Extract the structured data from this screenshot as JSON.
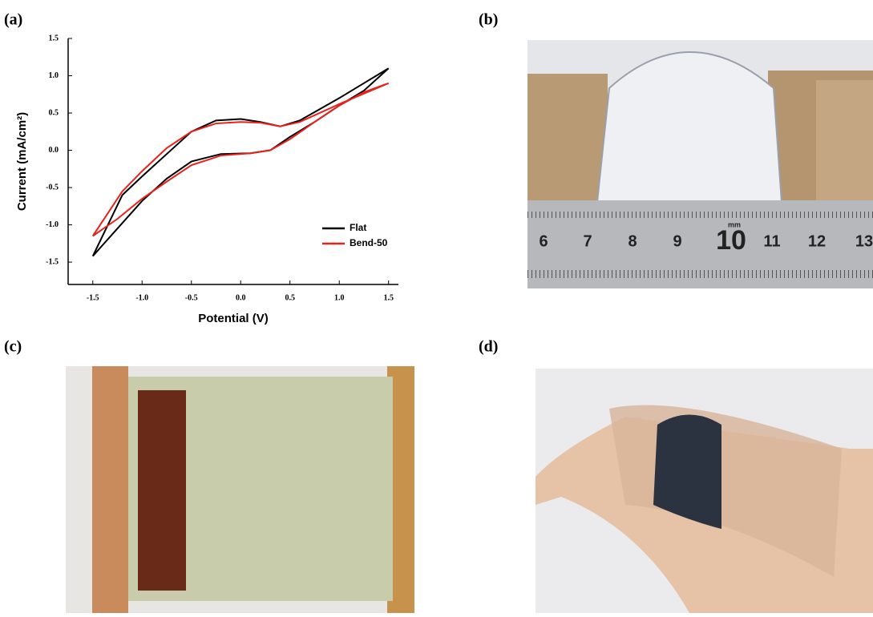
{
  "chart_data": {
    "type": "line",
    "xlabel": "Potential (V)",
    "ylabel": "Current (mA/cm²)",
    "xlim": [
      -1.75,
      1.6
    ],
    "ylim": [
      -1.8,
      1.5
    ],
    "xticks": [
      {
        "value": -1.5,
        "label": "-1.5"
      },
      {
        "value": -1,
        "label": "-1.0"
      },
      {
        "value": -0.5,
        "label": "-0.5"
      },
      {
        "value": 0,
        "label": "0.0"
      },
      {
        "value": 0.5,
        "label": "0.5"
      },
      {
        "value": 1,
        "label": "1.0"
      },
      {
        "value": 1.5,
        "label": "1.5"
      }
    ],
    "yticks": [
      {
        "value": -1.5,
        "label": "-1.5"
      },
      {
        "value": -1,
        "label": "-1.0"
      },
      {
        "value": -0.5,
        "label": "-0.5"
      },
      {
        "value": 0,
        "label": "0.0"
      },
      {
        "value": 0.5,
        "label": "0.5"
      },
      {
        "value": 1,
        "label": "1.0"
      },
      {
        "value": 1.5,
        "label": "1.5"
      }
    ],
    "legend": "lower right",
    "series": [
      {
        "name": "Flat",
        "color": "#000000",
        "x": [
          -1.5,
          -1.2,
          -1,
          -0.75,
          -0.5,
          -0.25,
          0,
          0.2,
          0.4,
          0.6,
          0.8,
          1,
          1.25,
          1.5,
          1.25,
          1,
          0.75,
          0.5,
          0.3,
          0.1,
          -0.2,
          -0.5,
          -0.75,
          -1,
          -1.25,
          -1.5
        ],
        "values": [
          -1.42,
          -0.6,
          -0.35,
          -0.05,
          0.25,
          0.4,
          0.42,
          0.38,
          0.32,
          0.4,
          0.55,
          0.7,
          0.9,
          1.1,
          0.8,
          0.6,
          0.38,
          0.18,
          0,
          -0.04,
          -0.05,
          -0.15,
          -0.38,
          -0.68,
          -1.05,
          -1.42
        ]
      },
      {
        "name": "Bend-50",
        "color": "#e8211b",
        "x": [
          -1.5,
          -1.2,
          -1,
          -0.75,
          -0.5,
          -0.25,
          0,
          0.2,
          0.4,
          0.6,
          0.8,
          1,
          1.25,
          1.5,
          1.25,
          1,
          0.75,
          0.5,
          0.3,
          0.1,
          -0.2,
          -0.5,
          -0.75,
          -1,
          -1.25,
          -1.5
        ],
        "values": [
          -1.15,
          -0.55,
          -0.28,
          0.03,
          0.25,
          0.36,
          0.38,
          0.37,
          0.32,
          0.38,
          0.5,
          0.62,
          0.76,
          0.9,
          0.78,
          0.6,
          0.38,
          0.15,
          0,
          -0.04,
          -0.07,
          -0.2,
          -0.42,
          -0.65,
          -0.92,
          -1.15
        ]
      }
    ]
  },
  "panels": [
    "(a)",
    "(b)",
    "(c)",
    "(d)"
  ],
  "ruler": {
    "numbers": [
      "6",
      "7",
      "8",
      "9",
      "10",
      "11",
      "12",
      "13"
    ],
    "unit": "mm"
  }
}
